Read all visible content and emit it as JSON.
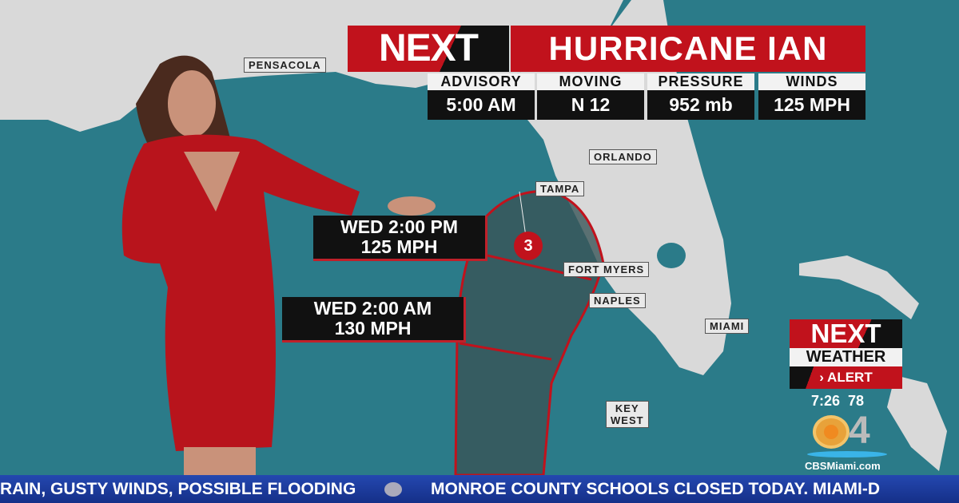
{
  "header": {
    "brand": "NEXT",
    "title": "HURRICANE IAN"
  },
  "stats": [
    {
      "label": "ADVISORY",
      "value": "5:00 AM"
    },
    {
      "label": "MOVING",
      "value": "N 12"
    },
    {
      "label": "PRESSURE",
      "value": "952 mb"
    },
    {
      "label": "WINDS",
      "value": "125 MPH"
    }
  ],
  "map": {
    "cities": [
      "PENSACOLA",
      "ORLANDO",
      "TAMPA",
      "FORT MYERS",
      "NAPLES",
      "MIAMI",
      "KEY",
      "WEST"
    ],
    "storm_category": "3",
    "forecasts": [
      {
        "time": "WED 2:00 PM",
        "winds": "125 MPH"
      },
      {
        "time": "WED 2:00 AM",
        "winds": "130 MPH"
      }
    ],
    "colors": {
      "water": "#2b7b89",
      "land": "#d9d9d9",
      "cone": "#c1121c"
    }
  },
  "bug": {
    "brand": "NEXT",
    "line2": "WEATHER",
    "line3": "ALERT",
    "time": "7:26",
    "temp": "78",
    "channel": "4",
    "site": "CBSMiami.com"
  },
  "ticker": {
    "items": [
      "RAIN, GUSTY WINDS, POSSIBLE FLOODING",
      "MONROE COUNTY SCHOOLS CLOSED TODAY. MIAMI-D"
    ]
  }
}
